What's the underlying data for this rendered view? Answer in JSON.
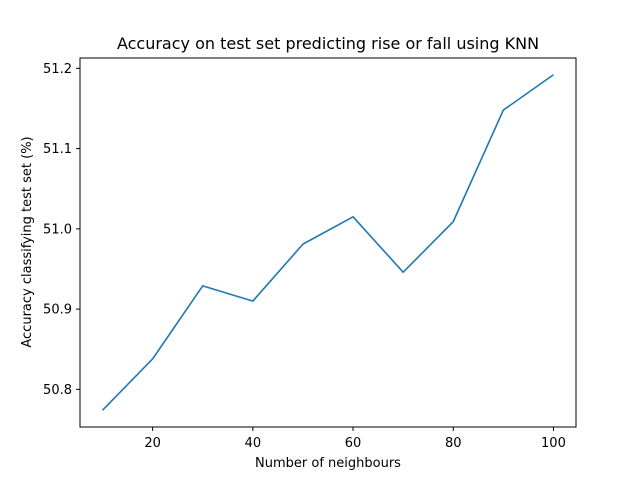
{
  "chart_data": {
    "type": "line",
    "title": "Accuracy on test set predicting rise or fall using KNN",
    "xlabel": "Number of neighbours",
    "ylabel": "Accuracy classifying test set (%)",
    "x": [
      10,
      20,
      30,
      40,
      50,
      60,
      70,
      80,
      90,
      100
    ],
    "series": [
      {
        "values": [
          50.774,
          50.838,
          50.929,
          50.91,
          50.981,
          51.015,
          50.946,
          51.009,
          51.148,
          51.192
        ]
      }
    ],
    "xlim": [
      5.5,
      104.5
    ],
    "ylim": [
      50.7531,
      51.2129
    ],
    "xticks": [
      20,
      40,
      60,
      80,
      100
    ],
    "xtick_labels": [
      "20",
      "40",
      "60",
      "80",
      "100"
    ],
    "yticks": [
      50.8,
      50.9,
      51.0,
      51.1,
      51.2
    ],
    "ytick_labels": [
      "50.8",
      "50.9",
      "51.0",
      "51.1",
      "51.2"
    ],
    "grid": false,
    "line_color": "#1f77b4"
  }
}
